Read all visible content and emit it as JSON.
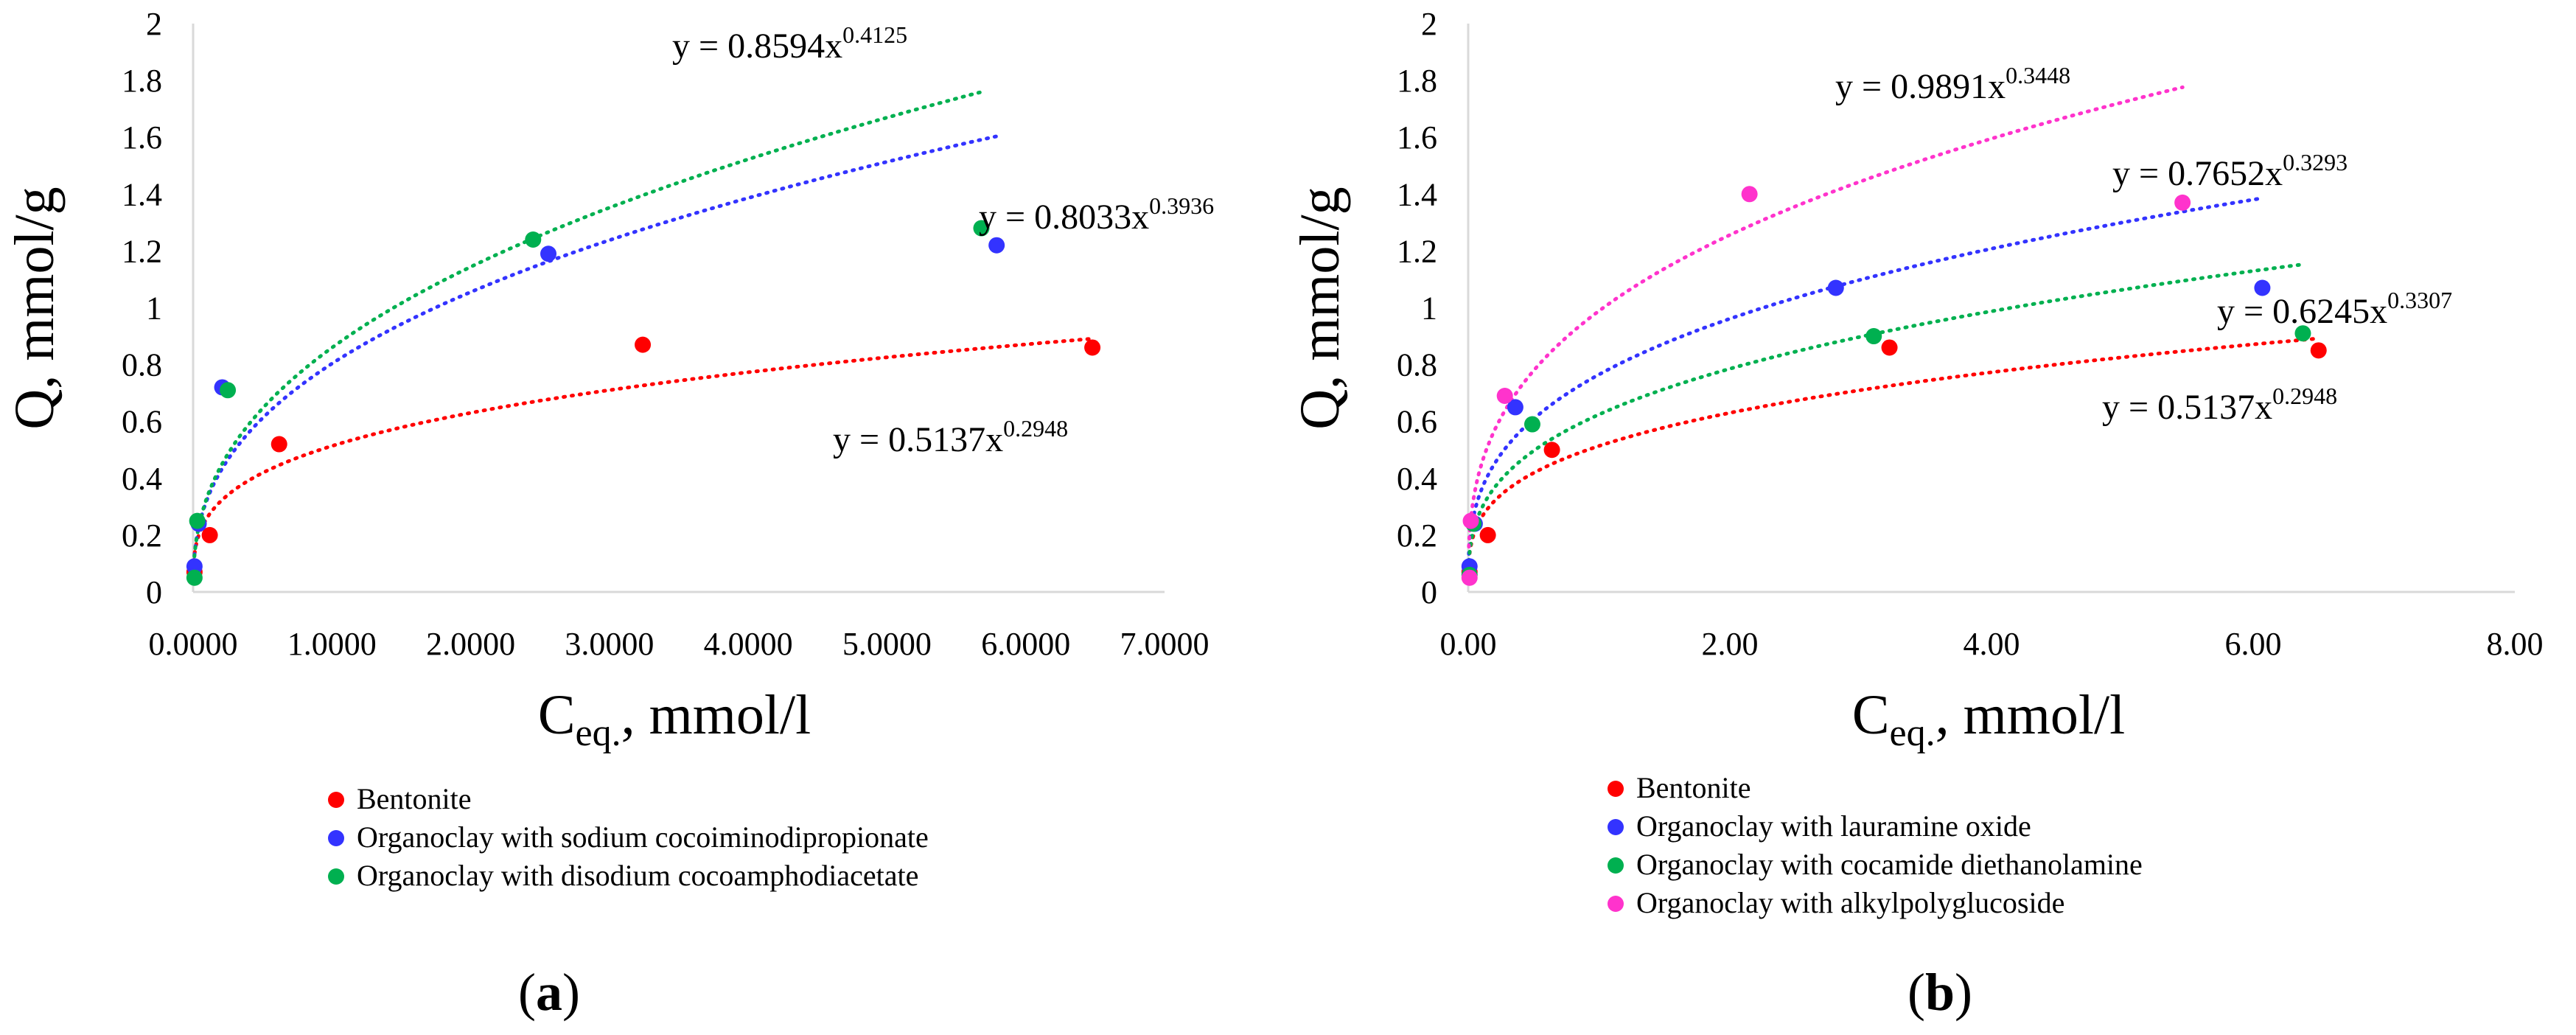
{
  "chart_data": [
    {
      "type": "scatter",
      "panel_label": "a",
      "xlabel": "C",
      "xlabel_sub": "eq.",
      "xlabel_unit": ", mmol/l",
      "ylabel": "Q, mmol/g",
      "xlim": [
        0,
        7
      ],
      "ylim": [
        0,
        2
      ],
      "x_ticks": [
        "0.0000",
        "1.0000",
        "2.0000",
        "3.0000",
        "4.0000",
        "5.0000",
        "6.0000",
        "7.0000"
      ],
      "y_ticks": [
        "0",
        "0.2",
        "0.4",
        "0.6",
        "0.8",
        "1",
        "1.2",
        "1.4",
        "1.6",
        "1.8",
        "2"
      ],
      "grid": false,
      "legend_position": "bottom",
      "series": [
        {
          "name": "Bentonite",
          "color": "#ff0000",
          "x": [
            0.01,
            0.12,
            0.62,
            3.24,
            6.48
          ],
          "y": [
            0.07,
            0.2,
            0.52,
            0.87,
            0.86
          ],
          "fit": {
            "a": 0.5137,
            "b": 0.2948,
            "x_end": 6.48,
            "equation_base": "y = 0.5137x",
            "equation_exp": "0.2948"
          }
        },
        {
          "name": "Organoclay with sodium cocoiminodipropionate",
          "color": "#3333ff",
          "x": [
            0.01,
            0.04,
            0.21,
            2.56,
            5.79
          ],
          "y": [
            0.09,
            0.24,
            0.72,
            1.19,
            1.22
          ],
          "fit": {
            "a": 0.8033,
            "b": 0.3936,
            "x_end": 5.79,
            "equation_base": "y = 0.8033x",
            "equation_exp": "0.3936"
          }
        },
        {
          "name": "Organoclay with disodium cocoamphodiacetate",
          "color": "#00b050",
          "x": [
            0.01,
            0.03,
            0.25,
            2.45,
            5.68
          ],
          "y": [
            0.05,
            0.25,
            0.71,
            1.24,
            1.28
          ],
          "fit": {
            "a": 0.8594,
            "b": 0.4125,
            "x_end": 5.68,
            "equation_base": "y = 0.8594x",
            "equation_exp": "0.4125"
          }
        }
      ]
    },
    {
      "type": "scatter",
      "panel_label": "b",
      "xlabel": "C",
      "xlabel_sub": "eq.",
      "xlabel_unit": ", mmol/l",
      "ylabel": "Q, mmol/g",
      "xlim": [
        0,
        8
      ],
      "ylim": [
        0,
        2
      ],
      "x_ticks": [
        "0.00",
        "2.00",
        "4.00",
        "6.00",
        "8.00"
      ],
      "y_ticks": [
        "0",
        "0.2",
        "0.4",
        "0.6",
        "0.8",
        "1",
        "1.2",
        "1.4",
        "1.6",
        "1.8",
        "2"
      ],
      "grid": false,
      "legend_position": "bottom",
      "series": [
        {
          "name": "Bentonite",
          "color": "#ff0000",
          "x": [
            0.01,
            0.15,
            0.64,
            3.22,
            6.5
          ],
          "y": [
            0.07,
            0.2,
            0.5,
            0.86,
            0.85
          ],
          "fit": {
            "a": 0.5137,
            "b": 0.2948,
            "x_end": 6.5,
            "equation_base": "y = 0.5137x",
            "equation_exp": "0.2948"
          }
        },
        {
          "name": "Organoclay with lauramine oxide",
          "color": "#3333ff",
          "x": [
            0.01,
            0.05,
            0.36,
            2.81,
            6.07
          ],
          "y": [
            0.09,
            0.24,
            0.65,
            1.07,
            1.07
          ],
          "fit": {
            "a": 0.7652,
            "b": 0.3293,
            "x_end": 6.07,
            "equation_base": "y = 0.7652x",
            "equation_exp": "0.3293"
          }
        },
        {
          "name": "Organoclay with cocamide diethanolamine",
          "color": "#00b050",
          "x": [
            0.01,
            0.04,
            0.49,
            3.1,
            6.38
          ],
          "y": [
            0.06,
            0.24,
            0.59,
            0.9,
            0.91
          ],
          "fit": {
            "a": 0.6245,
            "b": 0.3307,
            "x_end": 6.38,
            "equation_base": "y = 0.6245x",
            "equation_exp": "0.3307"
          }
        },
        {
          "name": "Organoclay with alkylpolyglucoside",
          "color": "#ff33cc",
          "x": [
            0.01,
            0.02,
            0.28,
            2.15,
            5.46
          ],
          "y": [
            0.05,
            0.25,
            0.69,
            1.4,
            1.37
          ],
          "fit": {
            "a": 0.9891,
            "b": 0.3448,
            "x_end": 5.46,
            "equation_base": "y = 0.9891x",
            "equation_exp": "0.3448"
          }
        }
      ]
    }
  ]
}
